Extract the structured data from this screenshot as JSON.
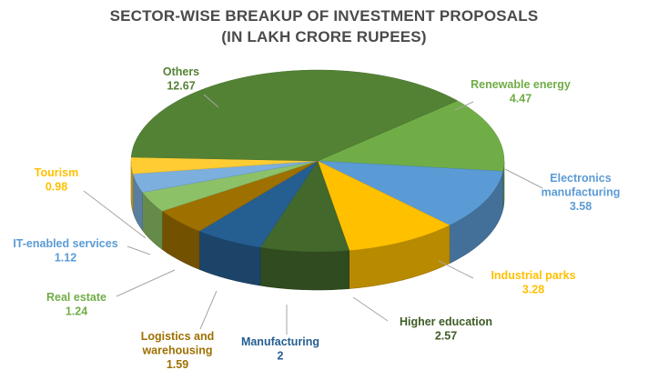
{
  "chart_data": {
    "type": "pie",
    "title": "SECTOR-WISE BREAKUP OF INVESTMENT PROPOSALS",
    "subtitle": "(IN LAKH CRORE RUPEES)",
    "slices": [
      {
        "name": "Renewable energy",
        "value": 4.47,
        "color": "#70ad47",
        "label_color": "#70ad47"
      },
      {
        "name": "Electronics manufacturing",
        "value": 3.58,
        "color": "#5b9bd5",
        "label_color": "#5b9bd5"
      },
      {
        "name": "Industrial parks",
        "value": 3.28,
        "color": "#ffc000",
        "label_color": "#ffc000"
      },
      {
        "name": "Higher education",
        "value": 2.57,
        "color": "#43682b",
        "label_color": "#3d5c25"
      },
      {
        "name": "Manufacturing",
        "value": 2,
        "color": "#255e91",
        "label_color": "#255e91"
      },
      {
        "name": "Logistics and warehousing",
        "value": 1.59,
        "color": "#9e7000",
        "label_color": "#9e7000"
      },
      {
        "name": "Real estate",
        "value": 1.24,
        "color": "#8cc168",
        "label_color": "#70ad47"
      },
      {
        "name": "IT-enabled services",
        "value": 1.12,
        "color": "#7cafdd",
        "label_color": "#5b9bd5"
      },
      {
        "name": "Tourism",
        "value": 0.98,
        "color": "#ffcd33",
        "label_color": "#ffc000"
      },
      {
        "name": "Others",
        "value": 12.67,
        "color": "#548235",
        "label_color": "#548235"
      }
    ]
  }
}
